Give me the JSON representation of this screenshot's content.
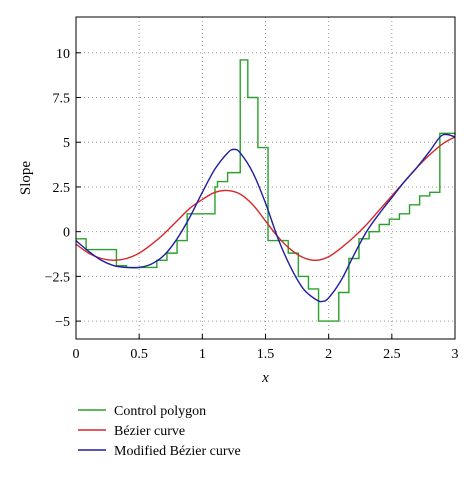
{
  "chart_data": {
    "type": "line",
    "xlabel": "x",
    "ylabel": "Slope",
    "xlim": [
      0,
      3
    ],
    "ylim": [
      -6,
      12
    ],
    "x_ticks": [
      0,
      0.5,
      1,
      1.5,
      2,
      2.5,
      3
    ],
    "x_tick_labels": [
      "0",
      "0.5",
      "1",
      "1.5",
      "2",
      "2.5",
      "3"
    ],
    "y_ticks": [
      -5,
      -2.5,
      0,
      2.5,
      5,
      7.5,
      10
    ],
    "y_tick_labels": [
      "−5",
      "−2.5",
      "0",
      "2.5",
      "5",
      "7.5",
      "10"
    ],
    "grid": true,
    "legend_position": "bottom-left",
    "series": [
      {
        "name": "Control polygon",
        "color": "#2ca02c",
        "step": true,
        "x": [
          0,
          0.05,
          0.08,
          0.16,
          0.24,
          0.32,
          0.4,
          0.48,
          0.56,
          0.64,
          0.72,
          0.8,
          0.88,
          1.1,
          1.12,
          1.2,
          1.3,
          1.36,
          1.44,
          1.52,
          1.6,
          1.68,
          1.76,
          1.84,
          1.92,
          2.0,
          2.08,
          2.16,
          2.24,
          2.32,
          2.4,
          2.48,
          2.56,
          2.64,
          2.72,
          2.8,
          2.88,
          2.96,
          3.0
        ],
        "y": [
          -0.4,
          -0.4,
          -1.0,
          -1.0,
          -1.0,
          -1.9,
          -2.0,
          -2.0,
          -2.0,
          -1.6,
          -1.2,
          -0.5,
          1.0,
          2.5,
          2.8,
          3.3,
          9.6,
          7.5,
          4.7,
          -0.5,
          -0.5,
          -1.2,
          -2.5,
          -3.2,
          -5.0,
          -5.0,
          -3.4,
          -1.5,
          -0.4,
          0.0,
          0.4,
          0.7,
          1.0,
          1.5,
          2.0,
          2.2,
          5.5,
          5.5,
          5.4
        ]
      },
      {
        "name": "Bézier curve",
        "color": "#d62728",
        "x": [
          0,
          0.1,
          0.2,
          0.3,
          0.4,
          0.5,
          0.6,
          0.7,
          0.8,
          0.9,
          1.0,
          1.1,
          1.2,
          1.3,
          1.4,
          1.5,
          1.6,
          1.7,
          1.8,
          1.9,
          2.0,
          2.1,
          2.2,
          2.3,
          2.4,
          2.5,
          2.6,
          2.7,
          2.8,
          2.9,
          3.0
        ],
        "y": [
          -0.7,
          -1.2,
          -1.5,
          -1.6,
          -1.5,
          -1.2,
          -0.7,
          -0.1,
          0.6,
          1.3,
          1.8,
          2.2,
          2.3,
          2.1,
          1.5,
          0.6,
          -0.3,
          -1.0,
          -1.45,
          -1.6,
          -1.4,
          -0.9,
          -0.3,
          0.4,
          1.2,
          2.0,
          2.8,
          3.6,
          4.3,
          4.9,
          5.3
        ]
      },
      {
        "name": "Modified Bézier curve",
        "color": "#1f1f9e",
        "x": [
          0,
          0.1,
          0.2,
          0.3,
          0.4,
          0.5,
          0.6,
          0.7,
          0.8,
          0.9,
          1.0,
          1.1,
          1.2,
          1.25,
          1.3,
          1.4,
          1.5,
          1.6,
          1.7,
          1.8,
          1.9,
          1.95,
          2.0,
          2.1,
          2.2,
          2.3,
          2.4,
          2.5,
          2.6,
          2.7,
          2.8,
          2.9,
          3.0
        ],
        "y": [
          -0.5,
          -1.1,
          -1.6,
          -1.9,
          -2.0,
          -2.0,
          -1.8,
          -1.3,
          -0.4,
          0.8,
          2.2,
          3.5,
          4.4,
          4.6,
          4.4,
          3.3,
          1.6,
          -0.4,
          -2.0,
          -3.2,
          -3.8,
          -3.9,
          -3.7,
          -2.7,
          -1.3,
          0.0,
          1.0,
          1.9,
          2.8,
          3.6,
          4.5,
          5.4,
          5.3
        ]
      }
    ]
  }
}
